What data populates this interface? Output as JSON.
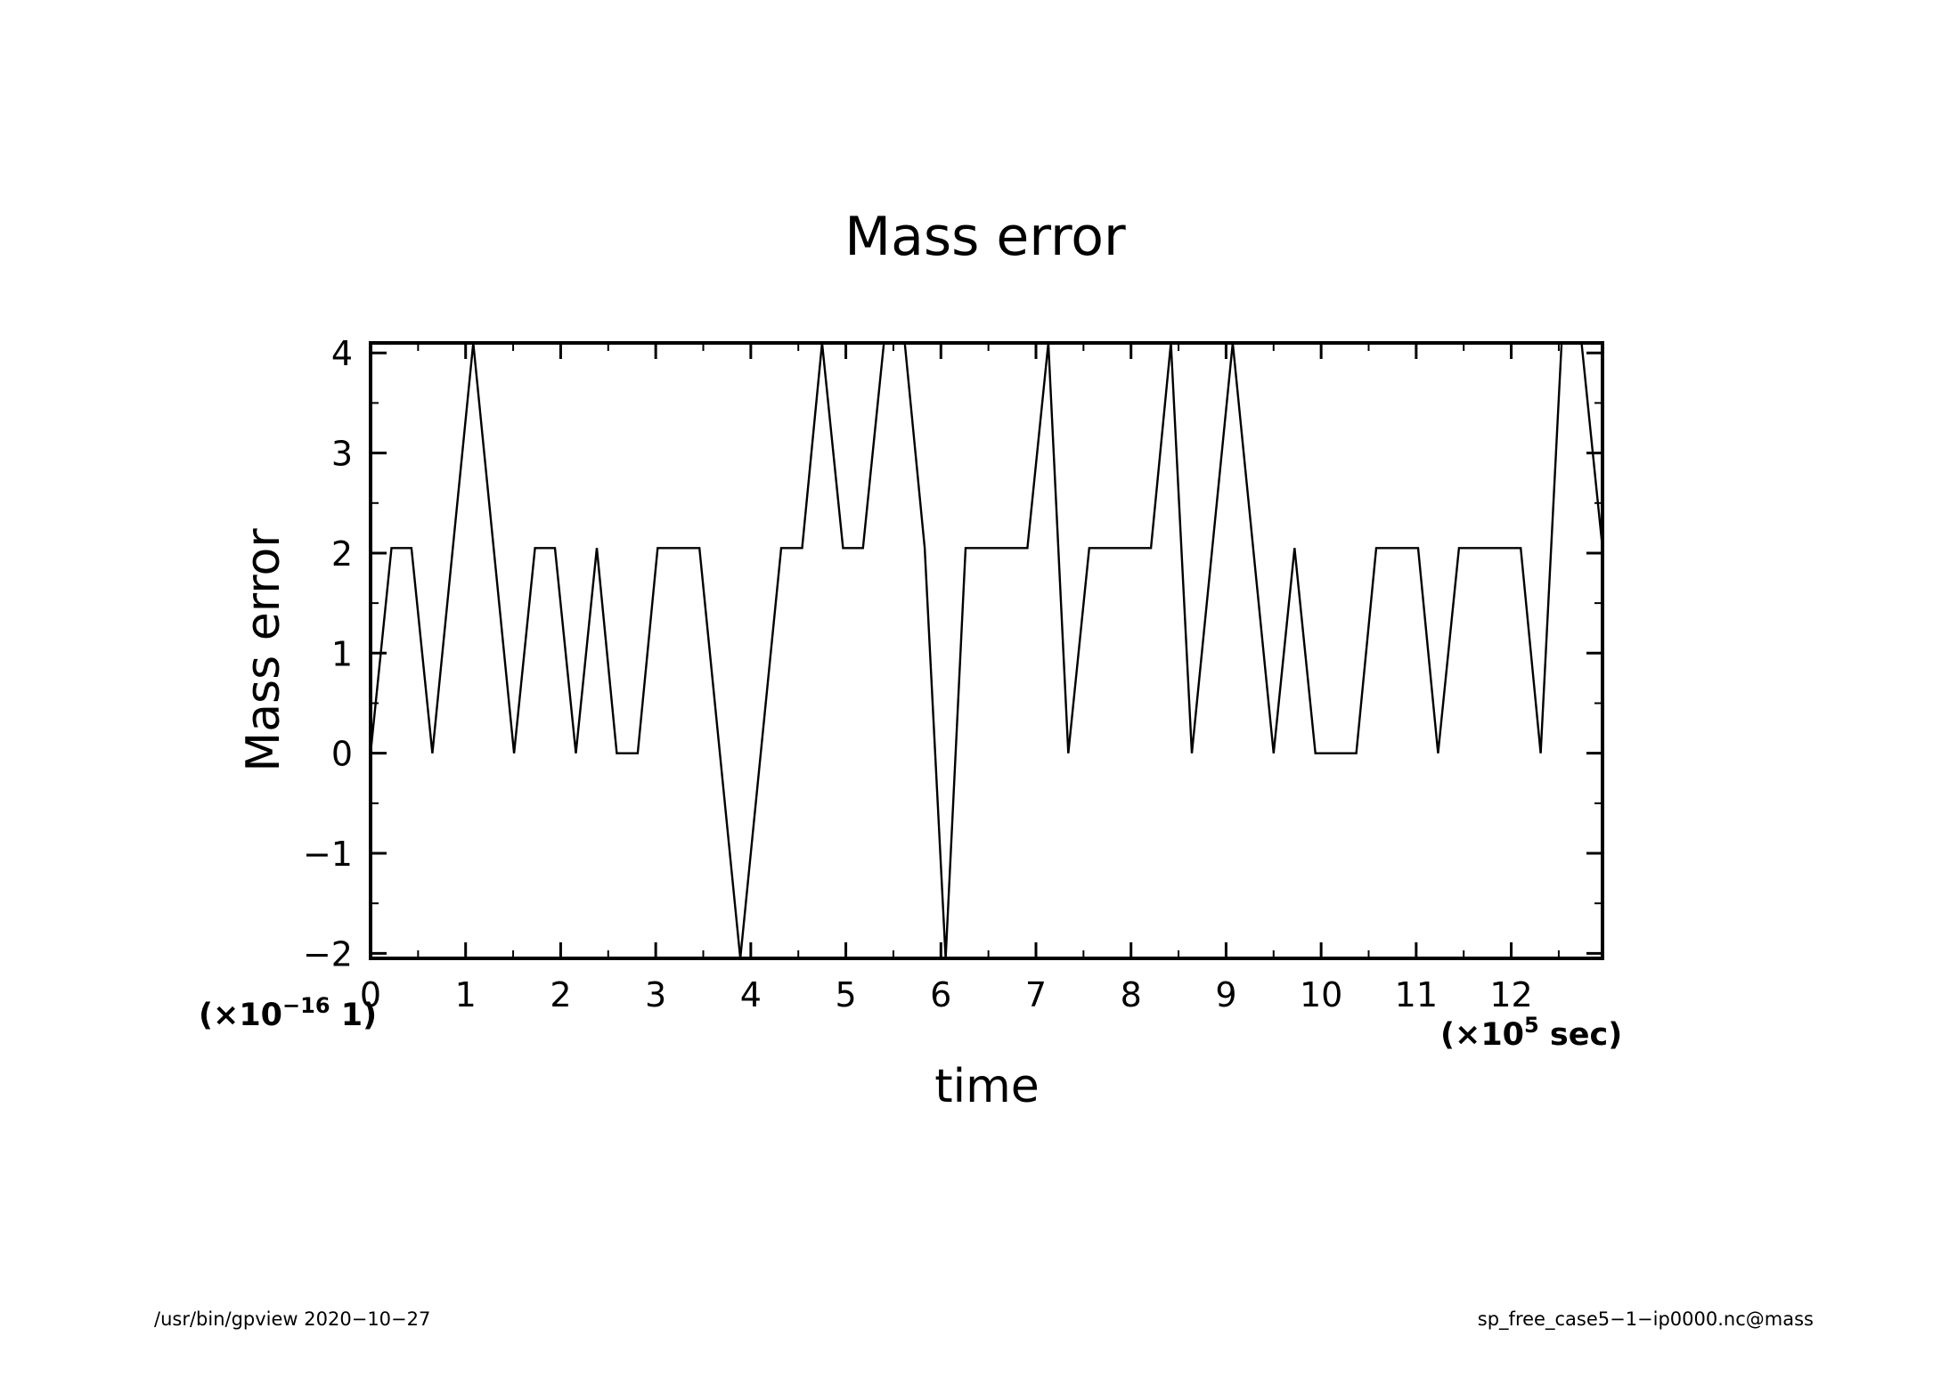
{
  "chart_data": {
    "type": "line",
    "title": "Mass error",
    "xlabel": "time",
    "ylabel": "Mass error",
    "xlim": [
      0,
      12.96
    ],
    "ylim": [
      -2.05,
      4.1
    ],
    "x_ticks": [
      0,
      1,
      2,
      3,
      4,
      5,
      6,
      7,
      8,
      9,
      10,
      11,
      12
    ],
    "y_ticks": [
      -2,
      -1,
      0,
      1,
      2,
      3,
      4
    ],
    "x_scale_text": {
      "prefix": "(×10",
      "exp": "5",
      "suffix": " sec)"
    },
    "y_scale_text": {
      "prefix": "(×10",
      "exp": "−16",
      "suffix": " 1)"
    },
    "grid": false,
    "legend": "none",
    "series": [
      {
        "x": [
          0,
          0.22,
          0.43,
          0.65,
          1.08,
          1.51,
          1.73,
          1.94,
          2.16,
          2.38,
          2.59,
          2.81,
          3.02,
          3.46,
          3.89,
          4.32,
          4.54,
          4.75,
          4.97,
          5.18,
          5.4,
          5.62,
          5.83,
          6.05,
          6.26,
          6.91,
          7.13,
          7.34,
          7.56,
          8.21,
          8.42,
          8.64,
          9.07,
          9.5,
          9.72,
          9.94,
          10.37,
          10.58,
          11.02,
          11.23,
          11.45,
          12.1,
          12.31,
          12.53,
          12.74,
          12.96
        ],
        "y": [
          0,
          2.05,
          2.05,
          0,
          4.1,
          0,
          2.05,
          2.05,
          0,
          2.05,
          0,
          0,
          2.05,
          2.05,
          -2.05,
          2.05,
          2.05,
          4.1,
          2.05,
          2.05,
          4.1,
          4.1,
          2.05,
          -2.05,
          2.05,
          2.05,
          4.1,
          0,
          2.05,
          2.05,
          4.1,
          0,
          4.1,
          0,
          2.05,
          0,
          0,
          2.05,
          2.05,
          0,
          2.05,
          2.05,
          0,
          4.1,
          4.1,
          2.05
        ]
      }
    ]
  },
  "footer": {
    "left": "/usr/bin/gpview   2020−10−27",
    "right": "sp_free_case5−1−ip0000.nc@mass"
  }
}
